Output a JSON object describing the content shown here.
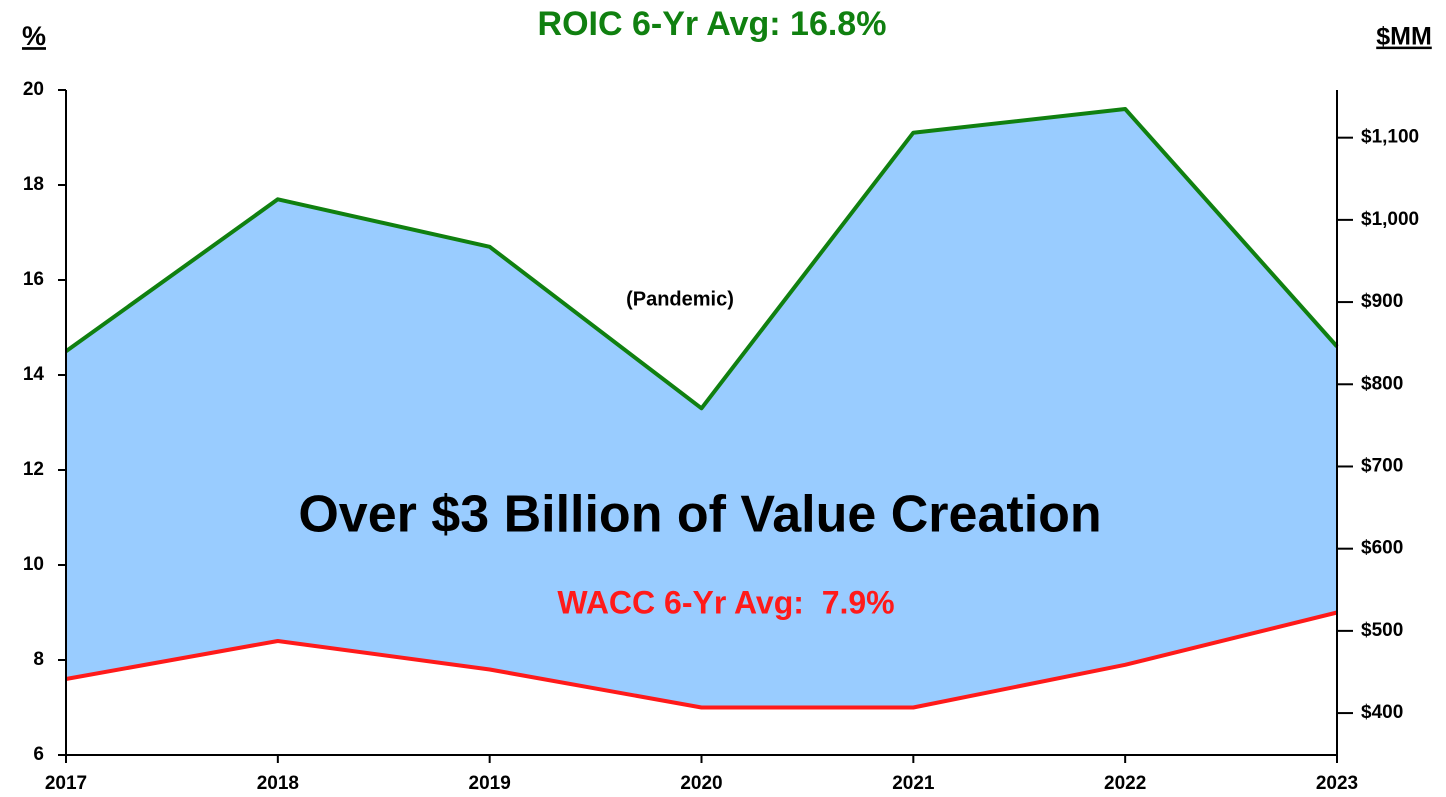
{
  "chart_data": {
    "type": "line",
    "title": "ROIC 6-Yr Avg: 16.8%",
    "y_label": "%",
    "y2_label": "$MM",
    "annotations": [
      "(Pandemic)",
      "Over $3 Billion of Value Creation",
      "WACC 6-Yr Avg:  7.9%"
    ],
    "x": [
      2017,
      2018,
      2019,
      2020,
      2021,
      2022,
      2023
    ],
    "xlim": [
      2017,
      2023
    ],
    "xticks": [
      2017,
      2018,
      2019,
      2020,
      2021,
      2022,
      2023
    ],
    "ylim": [
      6,
      20
    ],
    "yticks": [
      6,
      8,
      10,
      12,
      14,
      16,
      18,
      20
    ],
    "y2lim": [
      349,
      1158
    ],
    "y2ticks": [
      {
        "value": 400,
        "label": "$400"
      },
      {
        "value": 500,
        "label": "$500"
      },
      {
        "value": 600,
        "label": "$600"
      },
      {
        "value": 700,
        "label": "$700"
      },
      {
        "value": 800,
        "label": "$800"
      },
      {
        "value": 900,
        "label": "$900"
      },
      {
        "value": 1000,
        "label": "$1,000"
      },
      {
        "value": 1100,
        "label": "$1,100"
      }
    ],
    "fill_color": "#99ccff",
    "series": [
      {
        "color": "#108010",
        "values": [
          14.5,
          17.7,
          16.7,
          13.3,
          19.1,
          19.6,
          14.6
        ]
      },
      {
        "color": "#ff1a1a",
        "values": [
          7.6,
          8.4,
          7.8,
          7.0,
          7.0,
          7.9,
          9.0
        ]
      }
    ]
  }
}
